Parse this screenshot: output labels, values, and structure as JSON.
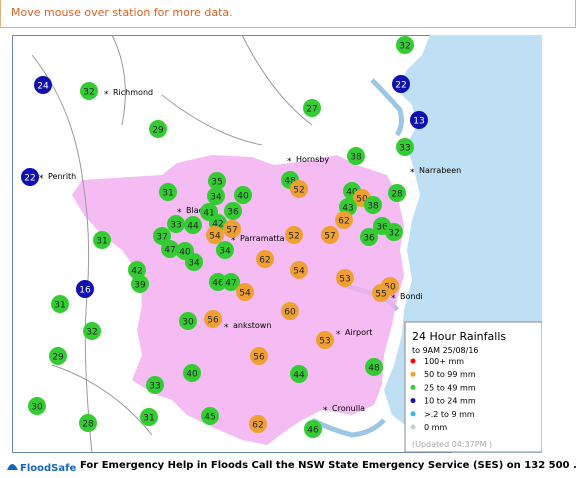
{
  "hint": "Move mouse over station for more data.",
  "places": [
    "Richmond",
    "Penrith",
    "Hornsby",
    "Narrabeen",
    "Black",
    "Parramatta",
    "ankstown",
    "Airport",
    "Bondi",
    "Cronulla"
  ],
  "legend": {
    "title": "24 Hour Rainfalls",
    "subtitle": "to 9AM 25/08/16",
    "items": [
      {
        "label": "100+ mm",
        "color": "#ff0000"
      },
      {
        "label": "50  to 99 mm",
        "color": "#f0a030"
      },
      {
        "label": "25  to 49 mm",
        "color": "#33cc33"
      },
      {
        "label": "10  to 24 mm",
        "color": "#1010b0"
      },
      {
        "label": ">.2 to 9 mm",
        "color": "#33bbee"
      },
      {
        "label": "0 mm",
        "color": "#cccccc"
      }
    ],
    "updated": "(Updated 04:37PM  )"
  },
  "stations": [
    {
      "value": 32,
      "color": "#33cc33"
    },
    {
      "value": 24,
      "color": "#1010b0"
    },
    {
      "value": 32,
      "color": "#33cc33"
    },
    {
      "value": 22,
      "color": "#1010b0"
    },
    {
      "value": 13,
      "color": "#1010b0"
    },
    {
      "value": 29,
      "color": "#33cc33"
    },
    {
      "value": 27,
      "color": "#33cc33"
    },
    {
      "value": 33,
      "color": "#33cc33"
    },
    {
      "value": 38,
      "color": "#33cc33"
    },
    {
      "value": 22,
      "color": "#1010b0"
    },
    {
      "value": 48,
      "color": "#33cc33"
    },
    {
      "value": 52,
      "color": "#f0a030"
    },
    {
      "value": 28,
      "color": "#33cc33"
    },
    {
      "value": 35,
      "color": "#33cc33"
    },
    {
      "value": 31,
      "color": "#33cc33"
    },
    {
      "value": 34,
      "color": "#33cc33"
    },
    {
      "value": 40,
      "color": "#33cc33"
    },
    {
      "value": 40,
      "color": "#33cc33"
    },
    {
      "value": 50,
      "color": "#f0a030"
    },
    {
      "value": 43,
      "color": "#33cc33"
    },
    {
      "value": 38,
      "color": "#33cc33"
    },
    {
      "value": 41,
      "color": "#33cc33"
    },
    {
      "value": 36,
      "color": "#33cc33"
    },
    {
      "value": 62,
      "color": "#f0a030"
    },
    {
      "value": 42,
      "color": "#33cc33"
    },
    {
      "value": 33,
      "color": "#33cc33"
    },
    {
      "value": 44,
      "color": "#33cc33"
    },
    {
      "value": 57,
      "color": "#f0a030"
    },
    {
      "value": 54,
      "color": "#f0a030"
    },
    {
      "value": 36,
      "color": "#33cc33"
    },
    {
      "value": 32,
      "color": "#33cc33"
    },
    {
      "value": 36,
      "color": "#33cc33"
    },
    {
      "value": 37,
      "color": "#33cc33"
    },
    {
      "value": 52,
      "color": "#f0a030"
    },
    {
      "value": 57,
      "color": "#f0a030"
    },
    {
      "value": 31,
      "color": "#33cc33"
    },
    {
      "value": 47,
      "color": "#33cc33"
    },
    {
      "value": 40,
      "color": "#33cc33"
    },
    {
      "value": 34,
      "color": "#33cc33"
    },
    {
      "value": 62,
      "color": "#f0a030"
    },
    {
      "value": 34,
      "color": "#33cc33"
    },
    {
      "value": 54,
      "color": "#f0a030"
    },
    {
      "value": 42,
      "color": "#33cc33"
    },
    {
      "value": 53,
      "color": "#f0a030"
    },
    {
      "value": 39,
      "color": "#33cc33"
    },
    {
      "value": 46,
      "color": "#33cc33"
    },
    {
      "value": 47,
      "color": "#33cc33"
    },
    {
      "value": 54,
      "color": "#f0a030"
    },
    {
      "value": 50,
      "color": "#f0a030"
    },
    {
      "value": 55,
      "color": "#f0a030"
    },
    {
      "value": 16,
      "color": "#1010b0"
    },
    {
      "value": 31,
      "color": "#33cc33"
    },
    {
      "value": 60,
      "color": "#f0a030"
    },
    {
      "value": 30,
      "color": "#33cc33"
    },
    {
      "value": 56,
      "color": "#f0a030"
    },
    {
      "value": 32,
      "color": "#33cc33"
    },
    {
      "value": 53,
      "color": "#f0a030"
    },
    {
      "value": 29,
      "color": "#33cc33"
    },
    {
      "value": 56,
      "color": "#f0a030"
    },
    {
      "value": 40,
      "color": "#33cc33"
    },
    {
      "value": 44,
      "color": "#33cc33"
    },
    {
      "value": 48,
      "color": "#33cc33"
    },
    {
      "value": 33,
      "color": "#33cc33"
    },
    {
      "value": 30,
      "color": "#33cc33"
    },
    {
      "value": 31,
      "color": "#33cc33"
    },
    {
      "value": 45,
      "color": "#33cc33"
    },
    {
      "value": 28,
      "color": "#33cc33"
    },
    {
      "value": 62,
      "color": "#f0a030"
    },
    {
      "value": 46,
      "color": "#33cc33"
    }
  ],
  "footer": {
    "logo": "FloodSafe",
    "text": "For Emergency Help in Floods Call the NSW State Emergency Service (SES) on 132 500 ."
  }
}
